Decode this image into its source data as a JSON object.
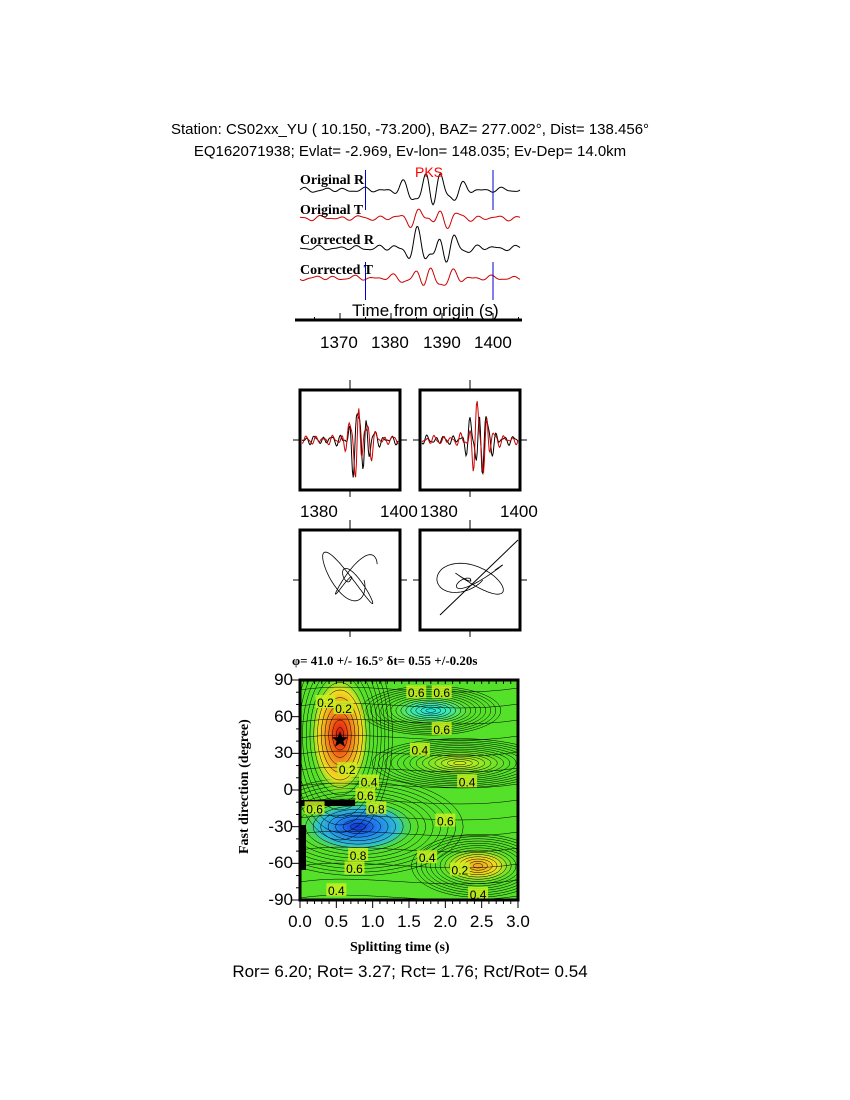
{
  "header": {
    "station_line": "Station: CS02xx_YU (  10.150,  -73.200), BAZ=  277.002°, Dist=  138.456°",
    "event_line": "EQ162071938; Evlat=  -2.969, Ev-lon= 148.035; Ev-Dep= 14.0km"
  },
  "chart_data": [
    {
      "type": "line",
      "panel": "waveforms",
      "traces": [
        "Original R",
        "Original T",
        "Corrected R",
        "Corrected T"
      ],
      "trace_colors": {
        "R": "#000000",
        "T": "#cc0000"
      },
      "phase_label": "PKS",
      "phase_color": "#ff0000",
      "window_markers": [
        1375,
        1400
      ],
      "marker_color": "#0000cc",
      "xlabel": "Time from origin (s)",
      "xticks": [
        1370,
        1380,
        1390,
        1400
      ],
      "xlim": [
        1362,
        1405
      ]
    },
    {
      "type": "line",
      "panel": "waveform-overlay",
      "xticks_left": [
        "1380",
        "1400"
      ],
      "xticks_right": [
        "1380",
        "1400"
      ]
    },
    {
      "type": "scatter",
      "panel": "particle-motion"
    },
    {
      "type": "heatmap",
      "panel": "misfit-grid",
      "title": "φ= 41.0 +/- 16.5° δt= 0.55 +/-0.20s",
      "xlabel": "Splitting time (s)",
      "ylabel": "Fast direction (degree)",
      "xlim": [
        0,
        3
      ],
      "ylim": [
        -90,
        90
      ],
      "xticks": [
        "0.0",
        "0.5",
        "1.0",
        "1.5",
        "2.0",
        "2.5",
        "3.0"
      ],
      "yticks": [
        "90",
        "60",
        "30",
        "0",
        "-30",
        "-60",
        "-90"
      ],
      "best_fit": {
        "dt": 0.55,
        "phi": 41.0
      },
      "contour_labels": [
        {
          "text": "0.2",
          "x": 0.35,
          "y": 72
        },
        {
          "text": "0.2",
          "x": 0.6,
          "y": 67
        },
        {
          "text": "0.6",
          "x": 1.6,
          "y": 80
        },
        {
          "text": "0.6",
          "x": 1.95,
          "y": 80
        },
        {
          "text": "0.6",
          "x": 1.95,
          "y": 50
        },
        {
          "text": "0.4",
          "x": 1.65,
          "y": 33
        },
        {
          "text": "0.2",
          "x": 0.65,
          "y": 17
        },
        {
          "text": "0.4",
          "x": 0.95,
          "y": 7
        },
        {
          "text": "0.4",
          "x": 2.3,
          "y": 7
        },
        {
          "text": "0.6",
          "x": 0.9,
          "y": -4
        },
        {
          "text": "0.8",
          "x": 1.05,
          "y": -15
        },
        {
          "text": "0.6",
          "x": 0.2,
          "y": -15
        },
        {
          "text": "0.6",
          "x": 2.0,
          "y": -25
        },
        {
          "text": "0.8",
          "x": 0.8,
          "y": -53
        },
        {
          "text": "0.6",
          "x": 0.75,
          "y": -64
        },
        {
          "text": "0.4",
          "x": 1.75,
          "y": -55
        },
        {
          "text": "0.2",
          "x": 2.2,
          "y": -65
        },
        {
          "text": "0.4",
          "x": 0.5,
          "y": -82
        },
        {
          "text": "0.4",
          "x": 2.45,
          "y": -85
        }
      ]
    }
  ],
  "footer": "Ror= 6.20; Rot= 3.27; Rct= 1.76; Rct/Rot= 0.54"
}
